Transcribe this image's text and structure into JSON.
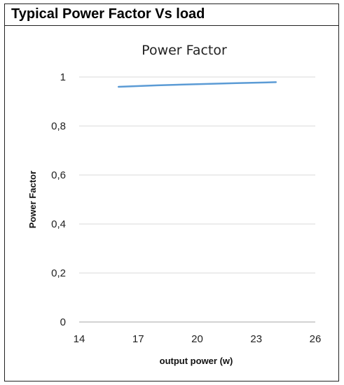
{
  "panel": {
    "title": "Typical Power Factor Vs load"
  },
  "chart_data": {
    "type": "line",
    "title": "Power Factor",
    "xlabel": "output power (w)",
    "ylabel": "Power Factor",
    "xlim": [
      14,
      26
    ],
    "ylim": [
      0,
      1
    ],
    "x_ticks": [
      "14",
      "17",
      "20",
      "23",
      "26"
    ],
    "x_tick_values": [
      14,
      17,
      20,
      23,
      26
    ],
    "y_ticks": [
      "0",
      "0,2",
      "0,4",
      "0,6",
      "0,8",
      "1"
    ],
    "y_tick_values": [
      0,
      0.2,
      0.4,
      0.6,
      0.8,
      1
    ],
    "grid": true,
    "series": [
      {
        "color": "#5b9bd5",
        "x": [
          16,
          18,
          20,
          22,
          24
        ],
        "y": [
          0.96,
          0.966,
          0.971,
          0.975,
          0.979
        ]
      }
    ]
  }
}
